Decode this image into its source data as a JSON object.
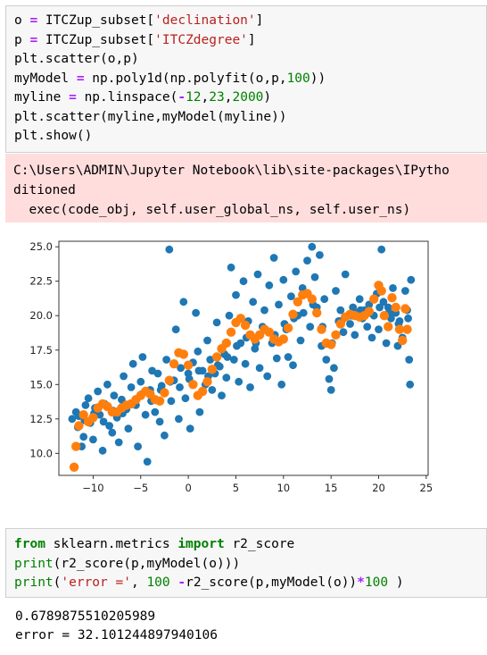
{
  "cell1": {
    "lines": [
      [
        {
          "t": "o "
        },
        {
          "t": "=",
          "c": "op"
        },
        {
          "t": " ITCZup_subset["
        },
        {
          "t": "'declination'",
          "c": "str"
        },
        {
          "t": "]"
        }
      ],
      [
        {
          "t": "p "
        },
        {
          "t": "=",
          "c": "op"
        },
        {
          "t": " ITCZup_subset["
        },
        {
          "t": "'ITCZdegree'",
          "c": "str"
        },
        {
          "t": "]"
        }
      ],
      [
        {
          "t": "plt.scatter(o,p)"
        }
      ],
      [
        {
          "t": "myModel "
        },
        {
          "t": "=",
          "c": "op"
        },
        {
          "t": " np.poly1d(np.polyfit(o,p,"
        },
        {
          "t": "100",
          "c": "num"
        },
        {
          "t": "))"
        }
      ],
      [
        {
          "t": "myline "
        },
        {
          "t": "=",
          "c": "op"
        },
        {
          "t": " np.linspace("
        },
        {
          "t": "-",
          "c": "op"
        },
        {
          "t": "12",
          "c": "num"
        },
        {
          "t": ","
        },
        {
          "t": "23",
          "c": "num"
        },
        {
          "t": ","
        },
        {
          "t": "2000",
          "c": "num"
        },
        {
          "t": ")"
        }
      ],
      [
        {
          "t": "plt.scatter(myline,myModel(myline))"
        }
      ],
      [
        {
          "t": "plt.show()"
        }
      ]
    ]
  },
  "stderr": {
    "lines": [
      "C:\\Users\\ADMIN\\Jupyter Notebook\\lib\\site-packages\\IPytho",
      "ditioned",
      "  exec(code_obj, self.user_global_ns, self.user_ns)"
    ]
  },
  "chart_data": {
    "type": "scatter",
    "title": "",
    "xlabel": "",
    "ylabel": "",
    "xlim": [
      -13.6,
      25.2
    ],
    "ylim": [
      8.4,
      25.4
    ],
    "xticks": [
      -10,
      -5,
      0,
      5,
      10,
      15,
      20,
      25
    ],
    "yticks": [
      10.0,
      12.5,
      15.0,
      17.5,
      20.0,
      22.5,
      25.0
    ],
    "xtick_labels": [
      "−10",
      "−5",
      "0",
      "5",
      "10",
      "15",
      "20",
      "25"
    ],
    "ytick_labels": [
      "10.0",
      "12.5",
      "15.0",
      "17.5",
      "20.0",
      "22.5",
      "25.0"
    ],
    "grid": false,
    "series": [
      {
        "color": "#1f77b4",
        "points": [
          [
            -12.2,
            12.5
          ],
          [
            -11.8,
            13.0
          ],
          [
            -11.5,
            12.7
          ],
          [
            -11.2,
            10.5
          ],
          [
            -11.0,
            11.2
          ],
          [
            -10.8,
            13.5
          ],
          [
            -10.5,
            14.0
          ],
          [
            -10.3,
            12.2
          ],
          [
            -10.0,
            11.0
          ],
          [
            -9.8,
            13.3
          ],
          [
            -9.5,
            14.5
          ],
          [
            -9.3,
            12.8
          ],
          [
            -9.0,
            10.2
          ],
          [
            -8.8,
            13.6
          ],
          [
            -8.5,
            15.0
          ],
          [
            -8.3,
            12.0
          ],
          [
            -8.0,
            11.5
          ],
          [
            -7.8,
            14.2
          ],
          [
            -7.5,
            12.6
          ],
          [
            -7.3,
            10.8
          ],
          [
            -7.0,
            13.9
          ],
          [
            -6.8,
            15.6
          ],
          [
            -6.5,
            13.2
          ],
          [
            -6.3,
            11.8
          ],
          [
            -6.0,
            14.8
          ],
          [
            -5.8,
            16.5
          ],
          [
            -5.5,
            13.5
          ],
          [
            -5.3,
            10.5
          ],
          [
            -5.0,
            15.2
          ],
          [
            -4.8,
            17.0
          ],
          [
            -4.5,
            12.8
          ],
          [
            -4.3,
            9.4
          ],
          [
            -4.0,
            14.6
          ],
          [
            -3.8,
            16.0
          ],
          [
            -3.5,
            13.0
          ],
          [
            -3.2,
            15.8
          ],
          [
            -3.0,
            12.3
          ],
          [
            -2.8,
            14.9
          ],
          [
            -2.5,
            11.3
          ],
          [
            -2.3,
            16.8
          ],
          [
            -2.0,
            24.8
          ],
          [
            -1.8,
            13.8
          ],
          [
            -1.5,
            15.3
          ],
          [
            -1.3,
            19.0
          ],
          [
            -1.0,
            12.5
          ],
          [
            -0.8,
            16.2
          ],
          [
            -0.5,
            21.0
          ],
          [
            -0.3,
            14.0
          ],
          [
            0.0,
            15.8
          ],
          [
            0.2,
            11.8
          ],
          [
            0.5,
            16.6
          ],
          [
            0.8,
            20.2
          ],
          [
            1.0,
            17.4
          ],
          [
            1.2,
            13.0
          ],
          [
            1.5,
            16.0
          ],
          [
            1.8,
            15.0
          ],
          [
            2.0,
            18.2
          ],
          [
            2.3,
            16.8
          ],
          [
            2.5,
            14.6
          ],
          [
            2.8,
            15.8
          ],
          [
            3.0,
            19.5
          ],
          [
            3.3,
            16.3
          ],
          [
            3.5,
            14.2
          ],
          [
            3.8,
            17.2
          ],
          [
            4.0,
            15.5
          ],
          [
            4.3,
            20.0
          ],
          [
            4.5,
            23.5
          ],
          [
            4.8,
            16.8
          ],
          [
            5.0,
            21.5
          ],
          [
            5.3,
            15.2
          ],
          [
            5.5,
            18.0
          ],
          [
            5.8,
            22.5
          ],
          [
            6.0,
            16.5
          ],
          [
            6.3,
            19.6
          ],
          [
            6.5,
            14.8
          ],
          [
            6.8,
            21.0
          ],
          [
            7.0,
            17.6
          ],
          [
            7.3,
            23.0
          ],
          [
            7.5,
            16.2
          ],
          [
            7.8,
            19.2
          ],
          [
            8.0,
            20.4
          ],
          [
            8.3,
            15.6
          ],
          [
            8.5,
            22.2
          ],
          [
            8.8,
            18.0
          ],
          [
            9.0,
            24.2
          ],
          [
            9.3,
            16.9
          ],
          [
            9.5,
            20.8
          ],
          [
            9.8,
            15.0
          ],
          [
            10.0,
            22.6
          ],
          [
            10.3,
            19.0
          ],
          [
            10.5,
            17.0
          ],
          [
            10.8,
            21.4
          ],
          [
            11.0,
            16.4
          ],
          [
            11.3,
            23.2
          ],
          [
            11.5,
            20.0
          ],
          [
            11.8,
            18.2
          ],
          [
            12.0,
            22.0
          ],
          [
            12.3,
            21.6
          ],
          [
            12.5,
            24.0
          ],
          [
            12.8,
            19.2
          ],
          [
            13.0,
            25.0
          ],
          [
            13.3,
            22.8
          ],
          [
            13.5,
            20.6
          ],
          [
            13.8,
            24.4
          ],
          [
            14.0,
            17.8
          ],
          [
            14.3,
            21.2
          ],
          [
            14.5,
            16.8
          ],
          [
            14.8,
            15.4
          ],
          [
            15.0,
            14.6
          ],
          [
            15.3,
            16.2
          ],
          [
            15.5,
            21.8
          ],
          [
            15.8,
            19.6
          ],
          [
            16.0,
            20.4
          ],
          [
            16.3,
            18.8
          ],
          [
            16.5,
            23.0
          ],
          [
            16.8,
            20.0
          ],
          [
            17.0,
            19.4
          ],
          [
            17.3,
            20.6
          ],
          [
            17.5,
            18.6
          ],
          [
            17.8,
            20.2
          ],
          [
            18.0,
            21.2
          ],
          [
            18.3,
            19.8
          ],
          [
            18.5,
            20.4
          ],
          [
            18.8,
            19.2
          ],
          [
            19.0,
            20.8
          ],
          [
            19.3,
            18.4
          ],
          [
            19.5,
            20.0
          ],
          [
            19.8,
            21.6
          ],
          [
            20.0,
            19.0
          ],
          [
            20.3,
            24.8
          ],
          [
            20.5,
            21.0
          ],
          [
            20.8,
            18.0
          ],
          [
            21.0,
            20.6
          ],
          [
            21.3,
            19.8
          ],
          [
            21.5,
            22.0
          ],
          [
            21.8,
            20.2
          ],
          [
            22.0,
            17.8
          ],
          [
            22.2,
            19.6
          ],
          [
            22.5,
            18.4
          ],
          [
            22.8,
            21.8
          ],
          [
            23.0,
            20.4
          ],
          [
            23.2,
            16.8
          ],
          [
            23.3,
            15.0
          ],
          [
            23.4,
            22.6
          ],
          [
            -11.6,
            11.9
          ],
          [
            -10.9,
            12.4
          ],
          [
            -9.9,
            12.9
          ],
          [
            -8.9,
            12.3
          ],
          [
            -7.9,
            13.1
          ],
          [
            -6.9,
            12.9
          ],
          [
            -5.9,
            13.6
          ],
          [
            -4.9,
            14.3
          ],
          [
            -3.9,
            13.8
          ],
          [
            -2.9,
            14.6
          ],
          [
            -1.9,
            15.2
          ],
          [
            -0.9,
            14.8
          ],
          [
            0.1,
            15.4
          ],
          [
            1.1,
            16.0
          ],
          [
            2.1,
            15.6
          ],
          [
            3.1,
            16.4
          ],
          [
            4.1,
            17.0
          ],
          [
            5.1,
            17.8
          ],
          [
            6.1,
            18.4
          ],
          [
            7.1,
            18.0
          ],
          [
            8.1,
            19.0
          ],
          [
            9.1,
            18.6
          ],
          [
            10.1,
            19.4
          ],
          [
            11.1,
            19.8
          ],
          [
            12.1,
            20.2
          ],
          [
            13.1,
            20.8
          ],
          [
            14.1,
            19.2
          ],
          [
            15.1,
            18.0
          ],
          [
            16.1,
            19.6
          ],
          [
            17.1,
            20.0
          ],
          [
            18.1,
            20.4
          ],
          [
            19.1,
            20.2
          ],
          [
            20.1,
            20.6
          ],
          [
            21.1,
            20.2
          ],
          [
            22.1,
            19.4
          ],
          [
            23.1,
            19.8
          ]
        ]
      },
      {
        "color": "#ff7f0e",
        "points": [
          [
            -12.0,
            9.0
          ],
          [
            -11.8,
            10.5
          ],
          [
            -11.5,
            12.0
          ],
          [
            -11.0,
            12.8
          ],
          [
            -10.5,
            12.3
          ],
          [
            -10.0,
            12.6
          ],
          [
            -9.5,
            13.3
          ],
          [
            -9.0,
            13.6
          ],
          [
            -8.5,
            13.4
          ],
          [
            -8.0,
            13.0
          ],
          [
            -7.5,
            13.0
          ],
          [
            -7.0,
            13.3
          ],
          [
            -6.5,
            13.5
          ],
          [
            -6.0,
            13.6
          ],
          [
            -5.5,
            13.9
          ],
          [
            -5.0,
            14.2
          ],
          [
            -4.5,
            14.5
          ],
          [
            -4.0,
            14.3
          ],
          [
            -3.5,
            13.9
          ],
          [
            -3.0,
            13.8
          ],
          [
            -2.5,
            14.4
          ],
          [
            -2.0,
            15.3
          ],
          [
            -1.5,
            16.5
          ],
          [
            -1.0,
            17.3
          ],
          [
            -0.5,
            17.2
          ],
          [
            0.0,
            16.4
          ],
          [
            0.5,
            15.0
          ],
          [
            1.0,
            14.2
          ],
          [
            1.5,
            14.5
          ],
          [
            2.0,
            15.2
          ],
          [
            2.5,
            16.1
          ],
          [
            3.0,
            17.0
          ],
          [
            3.5,
            17.6
          ],
          [
            4.0,
            18.0
          ],
          [
            4.5,
            18.8
          ],
          [
            5.0,
            19.5
          ],
          [
            5.5,
            19.8
          ],
          [
            6.0,
            19.3
          ],
          [
            6.5,
            18.6
          ],
          [
            7.0,
            18.3
          ],
          [
            7.5,
            18.6
          ],
          [
            8.0,
            19.0
          ],
          [
            8.5,
            18.8
          ],
          [
            9.0,
            18.3
          ],
          [
            9.5,
            18.1
          ],
          [
            10.0,
            18.3
          ],
          [
            10.5,
            19.1
          ],
          [
            11.0,
            20.1
          ],
          [
            11.5,
            21.0
          ],
          [
            12.0,
            21.5
          ],
          [
            12.5,
            21.6
          ],
          [
            13.0,
            21.2
          ],
          [
            13.5,
            20.2
          ],
          [
            14.0,
            19.0
          ],
          [
            14.5,
            18.0
          ],
          [
            15.0,
            17.9
          ],
          [
            15.5,
            18.6
          ],
          [
            16.0,
            19.4
          ],
          [
            16.5,
            19.9
          ],
          [
            17.0,
            20.1
          ],
          [
            17.5,
            20.0
          ],
          [
            18.0,
            19.9
          ],
          [
            18.5,
            20.0
          ],
          [
            19.0,
            20.3
          ],
          [
            19.5,
            21.2
          ],
          [
            20.0,
            22.2
          ],
          [
            20.3,
            21.8
          ],
          [
            20.6,
            20.0
          ],
          [
            21.0,
            19.2
          ],
          [
            21.4,
            21.3
          ],
          [
            21.8,
            20.6
          ],
          [
            22.2,
            19.0
          ],
          [
            22.5,
            18.2
          ],
          [
            22.8,
            20.5
          ],
          [
            23.0,
            19.0
          ]
        ]
      }
    ]
  },
  "cell2": {
    "lines": [
      [
        {
          "t": "from",
          "c": "kw"
        },
        {
          "t": " sklearn.metrics "
        },
        {
          "t": "import",
          "c": "kw"
        },
        {
          "t": " r2_score"
        }
      ],
      [
        {
          "t": "print",
          "c": "num"
        },
        {
          "t": "(r2_score(p,myModel(o)))"
        }
      ],
      [
        {
          "t": "print",
          "c": "num"
        },
        {
          "t": "("
        },
        {
          "t": "'error ='",
          "c": "str"
        },
        {
          "t": ", "
        },
        {
          "t": "100",
          "c": "num"
        },
        {
          "t": " "
        },
        {
          "t": "-",
          "c": "op"
        },
        {
          "t": "r2_score(p,myModel(o))"
        },
        {
          "t": "*",
          "c": "op"
        },
        {
          "t": "100",
          "c": "num"
        },
        {
          "t": " )"
        }
      ]
    ]
  },
  "output": {
    "line1": "0.6789875510205989",
    "line2": "error = 32.101244897940106"
  }
}
